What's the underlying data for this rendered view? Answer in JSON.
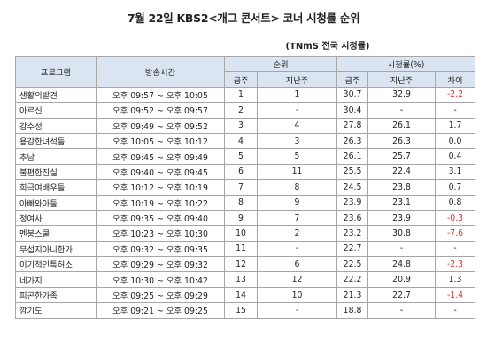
{
  "title": "7월 22일 KBS2<개그 콘서트> 코너 시청률 순위",
  "subtitle": "(TNmS 전국 시청률)",
  "headers": {
    "program": "프로그램",
    "airtime": "방송시간",
    "rank": "순위",
    "rank_this": "금주",
    "rank_last": "지난주",
    "rating": "시청률(%)",
    "rating_this": "금주",
    "rating_last": "지난주",
    "rating_diff": "차이"
  },
  "rows": [
    {
      "name": "생활의발견",
      "start": "오후 09:57",
      "end": "오후 10:05",
      "rank": "1",
      "prev_rank": "1",
      "rating": "30.7",
      "prev_rating": "32.9",
      "diff": "-2.2",
      "neg": true
    },
    {
      "name": "아르신",
      "start": "오후 09:52",
      "end": "오후 09:57",
      "rank": "2",
      "prev_rank": "-",
      "rating": "30.4",
      "prev_rating": "-",
      "diff": "-",
      "neg": false
    },
    {
      "name": "감수성",
      "start": "오후 09:49",
      "end": "오후 09:52",
      "rank": "3",
      "prev_rank": "4",
      "rating": "27.8",
      "prev_rating": "26.1",
      "diff": "1.7",
      "neg": false
    },
    {
      "name": "용감한녀석들",
      "start": "오후 10:05",
      "end": "오후 10:12",
      "rank": "4",
      "prev_rank": "3",
      "rating": "26.3",
      "prev_rating": "26.3",
      "diff": "0.0",
      "neg": false
    },
    {
      "name": "추남",
      "start": "오후 09:45",
      "end": "오후 09:49",
      "rank": "5",
      "prev_rank": "5",
      "rating": "26.1",
      "prev_rating": "25.7",
      "diff": "0.4",
      "neg": false
    },
    {
      "name": "불편한진실",
      "start": "오후 09:40",
      "end": "오후 09:45",
      "rank": "6",
      "prev_rank": "11",
      "rating": "25.5",
      "prev_rating": "22.4",
      "diff": "3.1",
      "neg": false
    },
    {
      "name": "희극여배우들",
      "start": "오후 10:12",
      "end": "오후 10:19",
      "rank": "7",
      "prev_rank": "8",
      "rating": "24.5",
      "prev_rating": "23.8",
      "diff": "0.7",
      "neg": false
    },
    {
      "name": "아빠와아들",
      "start": "오후 10:19",
      "end": "오후 10:22",
      "rank": "8",
      "prev_rank": "9",
      "rating": "23.9",
      "prev_rating": "23.1",
      "diff": "0.8",
      "neg": false
    },
    {
      "name": "정여사",
      "start": "오후 09:35",
      "end": "오후 09:40",
      "rank": "9",
      "prev_rank": "7",
      "rating": "23.6",
      "prev_rating": "23.9",
      "diff": "-0.3",
      "neg": true
    },
    {
      "name": "멘붕스쿨",
      "start": "오후 10:23",
      "end": "오후 10:30",
      "rank": "10",
      "prev_rank": "2",
      "rating": "23.2",
      "prev_rating": "30.8",
      "diff": "-7.6",
      "neg": true
    },
    {
      "name": "무섭지아니한가",
      "start": "오후 09:32",
      "end": "오후 09:35",
      "rank": "11",
      "prev_rank": "-",
      "rating": "22.7",
      "prev_rating": "-",
      "diff": "-",
      "neg": false
    },
    {
      "name": "이기적인특허소",
      "start": "오후 09:29",
      "end": "오후 09:32",
      "rank": "12",
      "prev_rank": "6",
      "rating": "22.5",
      "prev_rating": "24.8",
      "diff": "-2.3",
      "neg": true
    },
    {
      "name": "네가지",
      "start": "오후 10:30",
      "end": "오후 10:42",
      "rank": "13",
      "prev_rank": "12",
      "rating": "22.2",
      "prev_rating": "20.9",
      "diff": "1.3",
      "neg": false
    },
    {
      "name": "피곤한가족",
      "start": "오후 09:25",
      "end": "오후 09:29",
      "rank": "14",
      "prev_rank": "10",
      "rating": "21.3",
      "prev_rating": "22.7",
      "diff": "-1.4",
      "neg": true
    },
    {
      "name": "깜기도",
      "start": "오후 09:21",
      "end": "오후 09:25",
      "rank": "15",
      "prev_rank": "-",
      "rating": "18.8",
      "prev_rating": "-",
      "diff": "-",
      "neg": false
    }
  ],
  "time_separator": "~"
}
